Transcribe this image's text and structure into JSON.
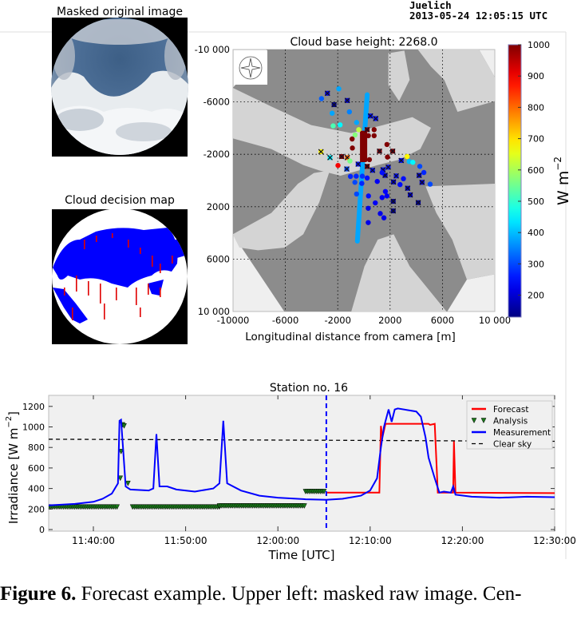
{
  "header": {
    "station": "Juelich",
    "timestamp": "2013-05-24 12:05:15 UTC"
  },
  "panels": {
    "masked_image_title": "Masked original image",
    "decision_map_title": "Cloud decision map"
  },
  "caption": {
    "label": "Figure 6.",
    "text": "Forecast example. Upper left: masked raw image. Cen-"
  },
  "colors": {
    "measurement": "#0000ff",
    "forecast": "#ff0000",
    "analysis": "#1a7a1a",
    "clear_sky": "#000000",
    "now_line": "#0000ff",
    "cloud_dark": "#8c8c8c",
    "cloud_free": "#d4d4d4",
    "decision_cloud": "#0000ff",
    "decision_red": "#ff0000"
  },
  "chart_data": [
    {
      "type": "scatter",
      "title": "Cloud base height: 2268.0",
      "xlabel": "Longitudinal distance from camera [m]",
      "ylabel": "",
      "xlim": [
        -10000,
        10000
      ],
      "ylim": [
        -10000,
        10000
      ],
      "y_inverted": true,
      "xticks": [
        "-10000",
        "-6000",
        "-2000",
        "2000",
        "6000",
        "10 000"
      ],
      "xtick_values": [
        -10000,
        -6000,
        -2000,
        2000,
        6000,
        10000
      ],
      "yticks": [
        "-10 000",
        "-6000",
        "-2000",
        "2000",
        "6000",
        "10 000"
      ],
      "ytick_values": [
        -10000,
        -6000,
        -2000,
        2000,
        6000,
        10000
      ],
      "grid": true,
      "inset_icon": "compass-rose-icon",
      "colorbar": {
        "label": "W m",
        "label_exp": "−2",
        "range": [
          130,
          1000
        ],
        "ticks": [
          "1000",
          "900",
          "800",
          "700",
          "600",
          "500",
          "400",
          "300",
          "200"
        ],
        "tick_values": [
          1000,
          900,
          800,
          700,
          600,
          500,
          400,
          300,
          200
        ],
        "colormap": "jet"
      },
      "streak": {
        "from": [
          250,
          -6550
        ],
        "to": [
          -500,
          4630
        ],
        "value": 380
      },
      "dense_block": {
        "x": [
          -300,
          250
        ],
        "y": [
          -3800,
          -1400
        ],
        "value": 1000
      },
      "points": [
        {
          "x": -1920,
          "y": -7000,
          "v": 380,
          "m": "o"
        },
        {
          "x": -2790,
          "y": -6660,
          "v": 220,
          "m": "x"
        },
        {
          "x": -3240,
          "y": -6250,
          "v": 320,
          "m": "o"
        },
        {
          "x": -2280,
          "y": -5790,
          "v": 150,
          "m": "x"
        },
        {
          "x": -1270,
          "y": -6110,
          "v": 200,
          "m": "x"
        },
        {
          "x": -1110,
          "y": -5240,
          "v": 350,
          "m": "o"
        },
        {
          "x": -2430,
          "y": -5140,
          "v": 380,
          "m": "o"
        },
        {
          "x": -2350,
          "y": -4170,
          "v": 520,
          "m": "o"
        },
        {
          "x": -1820,
          "y": -4250,
          "v": 450,
          "m": "o"
        },
        {
          "x": -560,
          "y": -4430,
          "v": 380,
          "m": "o"
        },
        {
          "x": -400,
          "y": -3880,
          "v": 620,
          "m": "o"
        },
        {
          "x": -680,
          "y": -3480,
          "v": 570,
          "m": "o"
        },
        {
          "x": 250,
          "y": -3880,
          "v": 1000,
          "m": "x"
        },
        {
          "x": 780,
          "y": -3880,
          "v": 1000,
          "m": "o"
        },
        {
          "x": -900,
          "y": -3170,
          "v": 1000,
          "m": "o"
        },
        {
          "x": 340,
          "y": -3420,
          "v": 1000,
          "m": "o"
        },
        {
          "x": 780,
          "y": -3420,
          "v": 1000,
          "m": "o"
        },
        {
          "x": -880,
          "y": -2480,
          "v": 1000,
          "m": "o"
        },
        {
          "x": 1760,
          "y": -2750,
          "v": 1000,
          "m": "o"
        },
        {
          "x": 1190,
          "y": -2240,
          "v": 1000,
          "m": "x"
        },
        {
          "x": 2200,
          "y": -2240,
          "v": 1000,
          "m": "x"
        },
        {
          "x": 1800,
          "y": -1790,
          "v": 1000,
          "m": "o"
        },
        {
          "x": 420,
          "y": -1590,
          "v": 1000,
          "m": "o"
        },
        {
          "x": -1700,
          "y": -1830,
          "v": 1000,
          "m": "x"
        },
        {
          "x": -1270,
          "y": -1750,
          "v": 800,
          "m": "x"
        },
        {
          "x": -1070,
          "y": -1490,
          "v": 560,
          "m": "o"
        },
        {
          "x": -3280,
          "y": -2200,
          "v": 680,
          "m": "x"
        },
        {
          "x": -2590,
          "y": -1750,
          "v": 450,
          "m": "x"
        },
        {
          "x": -1980,
          "y": -1150,
          "v": 900,
          "m": "o"
        },
        {
          "x": -1310,
          "y": -880,
          "v": 300,
          "m": "x"
        },
        {
          "x": -440,
          "y": -1250,
          "v": 250,
          "m": "x"
        },
        {
          "x": 250,
          "y": -1080,
          "v": 1000,
          "m": "x"
        },
        {
          "x": 660,
          "y": -780,
          "v": 250,
          "m": "x"
        },
        {
          "x": 500,
          "y": -4930,
          "v": 250,
          "m": "x"
        },
        {
          "x": 900,
          "y": -4730,
          "v": 250,
          "m": "x"
        },
        {
          "x": 3300,
          "y": -1830,
          "v": 680,
          "m": "o"
        },
        {
          "x": 2850,
          "y": -1530,
          "v": 250,
          "m": "x"
        },
        {
          "x": 3460,
          "y": -1450,
          "v": 400,
          "m": "o"
        },
        {
          "x": 3740,
          "y": -1390,
          "v": 450,
          "m": "o"
        },
        {
          "x": 1460,
          "y": -820,
          "v": 250,
          "m": "x"
        },
        {
          "x": 1860,
          "y": -1020,
          "v": 250,
          "m": "x"
        },
        {
          "x": 1620,
          "y": -390,
          "v": 200,
          "m": "x"
        },
        {
          "x": 2470,
          "y": -350,
          "v": 250,
          "m": "x"
        },
        {
          "x": 2260,
          "y": 110,
          "v": 200,
          "m": "x"
        },
        {
          "x": 4220,
          "y": -390,
          "v": 200,
          "m": "x"
        },
        {
          "x": 4440,
          "y": 140,
          "v": 200,
          "m": "x"
        },
        {
          "x": 3340,
          "y": 590,
          "v": 200,
          "m": "x"
        },
        {
          "x": 3540,
          "y": 1100,
          "v": 200,
          "m": "x"
        },
        {
          "x": 4150,
          "y": 1690,
          "v": 150,
          "m": "x"
        },
        {
          "x": 2240,
          "y": 1590,
          "v": 150,
          "m": "x"
        },
        {
          "x": 2240,
          "y": 2320,
          "v": 150,
          "m": "x"
        },
        {
          "x": -1030,
          "y": -310,
          "v": 270,
          "m": "o"
        },
        {
          "x": -590,
          "y": -330,
          "v": 270,
          "m": "o"
        },
        {
          "x": -120,
          "y": -330,
          "v": 280,
          "m": "o"
        },
        {
          "x": -690,
          "y": 140,
          "v": 300,
          "m": "o"
        },
        {
          "x": 250,
          "y": -190,
          "v": 250,
          "m": "o"
        },
        {
          "x": 1020,
          "y": 70,
          "v": 230,
          "m": "o"
        },
        {
          "x": 1390,
          "y": -600,
          "v": 250,
          "m": "o"
        },
        {
          "x": 1640,
          "y": 840,
          "v": 240,
          "m": "o"
        },
        {
          "x": 1390,
          "y": 1300,
          "v": 230,
          "m": "o"
        },
        {
          "x": 1760,
          "y": 1180,
          "v": 230,
          "m": "o"
        },
        {
          "x": 870,
          "y": 1710,
          "v": 230,
          "m": "o"
        },
        {
          "x": 330,
          "y": 2120,
          "v": 220,
          "m": "o"
        },
        {
          "x": 330,
          "y": 3210,
          "v": 220,
          "m": "o"
        },
        {
          "x": 1250,
          "y": 2520,
          "v": 220,
          "m": "o"
        },
        {
          "x": 1530,
          "y": 2850,
          "v": 220,
          "m": "o"
        },
        {
          "x": 4270,
          "y": -1080,
          "v": 300,
          "m": "o"
        },
        {
          "x": 4580,
          "y": -610,
          "v": 270,
          "m": "o"
        },
        {
          "x": 5060,
          "y": 280,
          "v": 300,
          "m": "o"
        },
        {
          "x": 3020,
          "y": -140,
          "v": 250,
          "m": "o"
        },
        {
          "x": 2760,
          "y": 310,
          "v": 250,
          "m": "o"
        },
        {
          "x": 350,
          "y": 1180,
          "v": 250,
          "m": "o"
        },
        {
          "x": -160,
          "y": 220,
          "v": 270,
          "m": "o"
        },
        {
          "x": -560,
          "y": 1030,
          "v": 300,
          "m": "o"
        }
      ]
    },
    {
      "type": "line",
      "title": "Station no. 16",
      "xlabel": "Time [UTC]",
      "ylabel": "Irradiance [W m",
      "ylabel_exp": "−2",
      "ylabel_close": "]",
      "xlim": [
        "11:35:09",
        "12:30:00"
      ],
      "ylim": [
        0,
        1300
      ],
      "xticks": [
        "11:40:00",
        "11:50:00",
        "12:00:00",
        "12:10:00",
        "12:20:00",
        "12:30:00"
      ],
      "yticks": [
        "0",
        "200",
        "400",
        "600",
        "800",
        "1000",
        "1200"
      ],
      "ytick_values": [
        0,
        200,
        400,
        600,
        800,
        1000,
        1200
      ],
      "forecast_start": "12:05:15",
      "legend": {
        "position": "top-right",
        "items": [
          "Forecast",
          "Analysis",
          "Measurement",
          "Clear sky"
        ]
      },
      "series": [
        {
          "name": "Measurement",
          "style": "line",
          "points": [
            [
              "11:35:10",
              235
            ],
            [
              "11:38:00",
              250
            ],
            [
              "11:40:00",
              270
            ],
            [
              "11:41:00",
              300
            ],
            [
              "11:42:00",
              350
            ],
            [
              "11:42:40",
              450
            ],
            [
              "11:42:50",
              1060
            ],
            [
              "11:43:00",
              1070
            ],
            [
              "11:43:15",
              750
            ],
            [
              "11:43:30",
              420
            ],
            [
              "11:44:00",
              390
            ],
            [
              "11:46:00",
              380
            ],
            [
              "11:46:30",
              400
            ],
            [
              "11:46:50",
              930
            ],
            [
              "11:47:10",
              420
            ],
            [
              "11:48:00",
              420
            ],
            [
              "11:49:00",
              390
            ],
            [
              "11:51:00",
              370
            ],
            [
              "11:53:00",
              400
            ],
            [
              "11:53:40",
              450
            ],
            [
              "11:54:05",
              1060
            ],
            [
              "11:54:30",
              450
            ],
            [
              "11:56:00",
              380
            ],
            [
              "11:58:00",
              330
            ],
            [
              "12:00:00",
              310
            ],
            [
              "12:03:00",
              295
            ],
            [
              "12:05:15",
              290
            ],
            [
              "12:07:00",
              300
            ],
            [
              "12:09:00",
              330
            ],
            [
              "12:10:00",
              380
            ],
            [
              "12:10:45",
              500
            ],
            [
              "12:11:10",
              800
            ],
            [
              "12:11:30",
              1000
            ],
            [
              "12:12:00",
              1170
            ],
            [
              "12:12:20",
              1050
            ],
            [
              "12:12:40",
              1170
            ],
            [
              "12:13:00",
              1180
            ],
            [
              "12:15:00",
              1150
            ],
            [
              "12:15:30",
              1100
            ],
            [
              "12:16:00",
              900
            ],
            [
              "12:16:20",
              700
            ],
            [
              "12:17:00",
              500
            ],
            [
              "12:17:30",
              360
            ],
            [
              "12:18:00",
              370
            ],
            [
              "12:18:45",
              360
            ],
            [
              "12:19:00",
              420
            ],
            [
              "12:19:15",
              340
            ],
            [
              "12:21:00",
              320
            ],
            [
              "12:24:00",
              310
            ],
            [
              "12:27:00",
              320
            ],
            [
              "12:30:00",
              315
            ]
          ]
        },
        {
          "name": "Forecast",
          "style": "line",
          "points": [
            [
              "12:05:15",
              360
            ],
            [
              "12:11:00",
              360
            ],
            [
              "12:11:10",
              1010
            ],
            [
              "12:11:20",
              900
            ],
            [
              "12:11:40",
              1030
            ],
            [
              "12:16:20",
              1030
            ],
            [
              "12:16:30",
              1020
            ],
            [
              "12:17:00",
              1030
            ],
            [
              "12:17:20",
              360
            ],
            [
              "12:19:00",
              360
            ],
            [
              "12:19:05",
              860
            ],
            [
              "12:19:15",
              360
            ],
            [
              "12:30:00",
              355
            ]
          ]
        },
        {
          "name": "Clear sky",
          "style": "dashed",
          "points": [
            [
              "11:35:10",
              880
            ],
            [
              "12:05:15",
              870
            ],
            [
              "12:30:00",
              860
            ]
          ]
        },
        {
          "name": "Analysis",
          "style": "markers",
          "runs": [
            {
              "from": "11:35:10",
              "to": "11:42:40",
              "value": 220
            },
            {
              "from": "11:44:15",
              "to": "11:53:40",
              "value": 220
            },
            {
              "from": "11:53:40",
              "to": "12:03:00",
              "value": 230
            },
            {
              "from": "12:03:00",
              "to": "12:05:10",
              "value": 370
            }
          ],
          "points": [
            [
              "11:43:10",
              1020
            ],
            [
              "11:43:20",
              1010
            ],
            [
              "11:43:00",
              760
            ],
            [
              "11:42:55",
              500
            ],
            [
              "11:43:45",
              450
            ]
          ]
        }
      ]
    }
  ]
}
